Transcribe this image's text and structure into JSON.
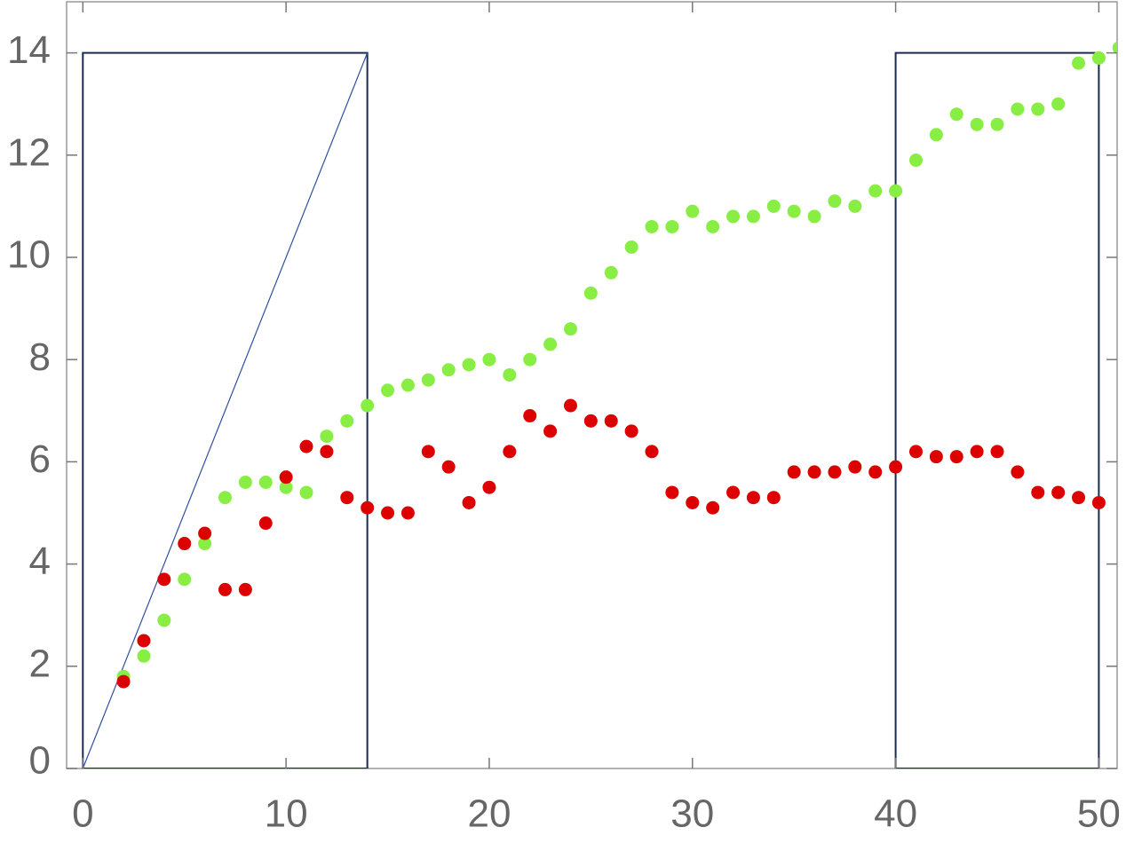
{
  "chart_data": {
    "type": "scatter",
    "xlim": [
      -0.8,
      50.9
    ],
    "ylim": [
      0,
      15
    ],
    "xticks": [
      0,
      10,
      20,
      30,
      40,
      50
    ],
    "yticks": [
      0,
      2,
      4,
      6,
      8,
      10,
      12,
      14
    ],
    "rectangles": [
      {
        "x": [
          0,
          14
        ],
        "y": [
          0,
          14
        ],
        "color": "#1c2a4f"
      },
      {
        "x": [
          40,
          50
        ],
        "y": [
          0,
          14
        ],
        "color": "#1c2a4f"
      }
    ],
    "lines": [
      {
        "x": [
          0,
          14
        ],
        "y": [
          0,
          14
        ],
        "color": "#2f4f9f"
      }
    ],
    "series": [
      {
        "color": "#88ee44",
        "x": [
          2,
          3,
          4,
          5,
          6,
          7,
          8,
          9,
          10,
          11,
          12,
          13,
          14,
          15,
          16,
          17,
          18,
          19,
          20,
          21,
          22,
          23,
          24,
          25,
          26,
          27,
          28,
          29,
          30,
          31,
          32,
          33,
          34,
          35,
          36,
          37,
          38,
          39,
          40,
          41,
          42,
          43,
          44,
          45,
          46,
          47,
          48,
          49,
          50,
          51
        ],
        "values": [
          1.8,
          2.2,
          2.9,
          3.7,
          4.4,
          5.3,
          5.6,
          5.6,
          5.5,
          5.4,
          6.5,
          6.8,
          7.1,
          7.4,
          7.5,
          7.6,
          7.8,
          7.9,
          8.0,
          7.7,
          8.0,
          8.3,
          8.6,
          9.3,
          9.7,
          10.2,
          10.6,
          10.6,
          10.9,
          10.6,
          10.8,
          10.8,
          11.0,
          10.9,
          10.8,
          11.1,
          11.0,
          11.3,
          11.3,
          11.9,
          12.4,
          12.8,
          12.6,
          12.6,
          12.9,
          12.9,
          13.0,
          13.8,
          13.9,
          14.1
        ]
      },
      {
        "color": "#dd0000",
        "x": [
          2,
          3,
          4,
          5,
          6,
          7,
          8,
          9,
          10,
          11,
          12,
          13,
          14,
          15,
          16,
          17,
          18,
          19,
          20,
          21,
          22,
          23,
          24,
          25,
          26,
          27,
          28,
          29,
          30,
          31,
          32,
          33,
          34,
          35,
          36,
          37,
          38,
          39,
          40,
          41,
          42,
          43,
          44,
          45,
          46,
          47,
          48,
          49,
          50
        ],
        "values": [
          1.7,
          2.5,
          3.7,
          4.4,
          4.6,
          3.5,
          3.5,
          4.8,
          5.7,
          6.3,
          6.2,
          5.3,
          5.1,
          5.0,
          5.0,
          6.2,
          5.9,
          5.2,
          5.5,
          6.2,
          6.9,
          6.6,
          7.1,
          6.8,
          6.8,
          6.6,
          6.2,
          5.4,
          5.2,
          5.1,
          5.4,
          5.3,
          5.3,
          5.8,
          5.8,
          5.8,
          5.9,
          5.8,
          5.9,
          6.2,
          6.1,
          6.1,
          6.2,
          6.2,
          5.8,
          5.4,
          5.4,
          5.3,
          5.2
        ]
      }
    ]
  }
}
